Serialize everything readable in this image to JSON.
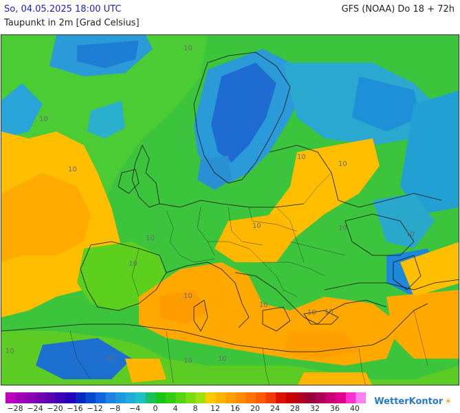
{
  "header": {
    "datetime": "So, 04.05.2025 18:00 UTC",
    "model_run": "GFS (NOAA) Do 18 + 72h",
    "parameter": "Taupunkt in 2m [Grad Celsius]"
  },
  "map": {
    "region": "Europe",
    "contour_labels": [
      "10",
      "10",
      "10",
      "10",
      "10",
      "10",
      "10",
      "10",
      "10",
      "10",
      "10",
      "10",
      "10",
      "10",
      "10",
      "10",
      "10",
      "10"
    ]
  },
  "legend": {
    "colors": [
      "#c000c0",
      "#a000b4",
      "#8c00b4",
      "#7000b0",
      "#5a00b0",
      "#3c00b4",
      "#2000b8",
      "#0828c0",
      "#0848d0",
      "#1064dc",
      "#1c84e0",
      "#1e98dc",
      "#20acd8",
      "#1ec0c8",
      "#18c060",
      "#18c418",
      "#34cc10",
      "#56d410",
      "#7cdc10",
      "#a0e010",
      "#ffc800",
      "#ffb400",
      "#ffa000",
      "#ff8c00",
      "#ff7400",
      "#ff5c00",
      "#f03c00",
      "#e01000",
      "#c80000",
      "#b00020",
      "#98003c",
      "#ac0058",
      "#c80074",
      "#e0008c",
      "#ff30d0",
      "#ff80f0"
    ],
    "labels": [
      "−28",
      "−24",
      "−20",
      "−16",
      "−12",
      "−8",
      "−4",
      "0",
      "4",
      "8",
      "12",
      "16",
      "20",
      "24",
      "28",
      "32",
      "36",
      "40"
    ]
  },
  "branding": {
    "logo_text": "WetterKontor",
    "logo_icon": "sun-cloud-icon"
  }
}
